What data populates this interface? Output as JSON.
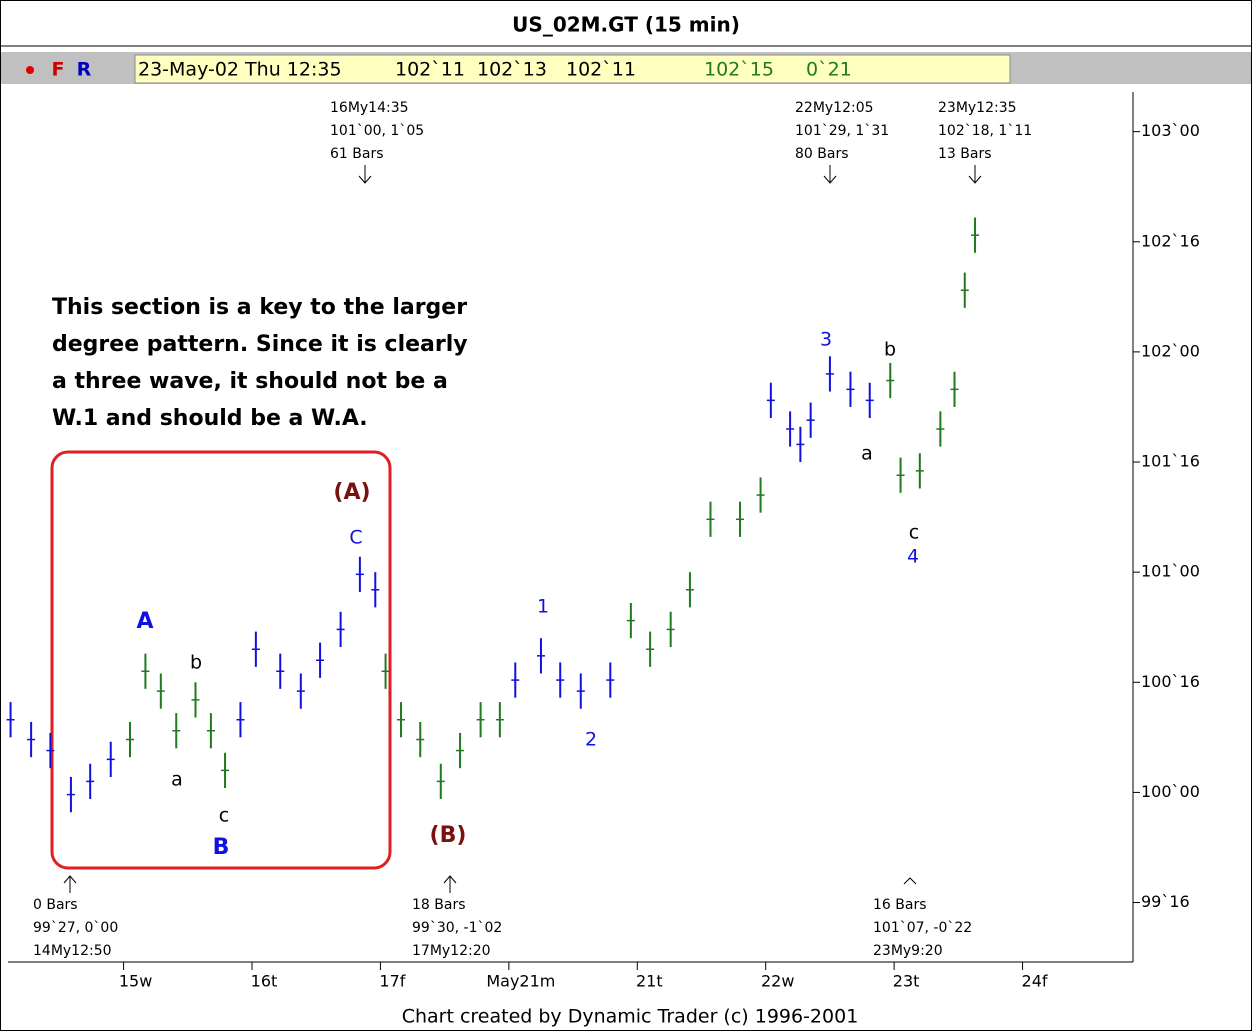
{
  "chart_data": {
    "type": "hlbar",
    "title": "US_02M.GT (15 min)",
    "toolbar": {
      "buttons": [
        "F",
        "R"
      ],
      "quote": [
        "23-May-02 Thu 12:35",
        "102`11",
        "102`13",
        "102`11",
        "102`15",
        "0`21"
      ]
    },
    "footer": "Chart created by Dynamic Trader (c) 1996-2001",
    "xlim": [
      -0.9,
      7.86
    ],
    "ylim": [
      99.23,
      103.18
    ],
    "xticks": [
      {
        "value": 0,
        "label": "15w"
      },
      {
        "value": 1,
        "label": "16t"
      },
      {
        "value": 2,
        "label": "17f"
      },
      {
        "value": 3,
        "label": "May21m"
      },
      {
        "value": 4,
        "label": "21t"
      },
      {
        "value": 5,
        "label": "22w"
      },
      {
        "value": 6,
        "label": "23t"
      },
      {
        "value": 7,
        "label": "24f"
      }
    ],
    "yticks": [
      {
        "value": 103,
        "label": "103`00"
      },
      {
        "value": 102.5,
        "label": "102`16"
      },
      {
        "value": 102,
        "label": "102`00"
      },
      {
        "value": 101.5,
        "label": "101`16"
      },
      {
        "value": 101,
        "label": "101`00"
      },
      {
        "value": 100.5,
        "label": "100`16"
      },
      {
        "value": 100,
        "label": "100`00"
      },
      {
        "value": 99.5,
        "label": "99`16"
      }
    ],
    "colors": {
      "up": "#1f7a1f",
      "down": "#1010e0"
    },
    "bars": {
      "x": [
        -0.88,
        -0.72,
        -0.57,
        -0.41,
        -0.26,
        -0.1,
        0.05,
        0.17,
        0.29,
        0.41,
        0.56,
        0.68,
        0.79,
        0.91,
        1.03,
        1.22,
        1.38,
        1.53,
        1.69,
        1.84,
        1.96,
        2.04,
        2.16,
        2.31,
        2.47,
        2.62,
        2.78,
        2.93,
        3.05,
        3.25,
        3.4,
        3.56,
        3.79,
        3.95,
        4.1,
        4.26,
        4.41,
        4.57,
        4.8,
        4.96,
        5.04,
        5.19,
        5.27,
        5.35,
        5.5,
        5.66,
        5.81,
        5.97,
        6.05,
        6.2,
        6.36,
        6.47,
        6.55,
        6.63
      ],
      "high": [
        100.41,
        100.32,
        100.27,
        100.07,
        100.13,
        100.23,
        100.32,
        100.63,
        100.54,
        100.36,
        100.5,
        100.36,
        100.18,
        100.41,
        100.73,
        100.63,
        100.54,
        100.68,
        100.82,
        101.07,
        101.0,
        100.63,
        100.41,
        100.32,
        100.13,
        100.27,
        100.41,
        100.41,
        100.59,
        100.7,
        100.59,
        100.54,
        100.59,
        100.86,
        100.73,
        100.82,
        101.0,
        101.32,
        101.32,
        101.43,
        101.86,
        101.73,
        101.66,
        101.77,
        101.98,
        101.91,
        101.86,
        101.95,
        101.52,
        101.54,
        101.73,
        101.91,
        102.36,
        102.61
      ],
      "low": [
        100.25,
        100.16,
        100.11,
        99.91,
        99.97,
        100.07,
        100.16,
        100.47,
        100.38,
        100.2,
        100.34,
        100.2,
        100.02,
        100.25,
        100.57,
        100.47,
        100.38,
        100.52,
        100.66,
        100.91,
        100.84,
        100.47,
        100.25,
        100.16,
        99.97,
        100.11,
        100.25,
        100.25,
        100.43,
        100.54,
        100.43,
        100.38,
        100.43,
        100.7,
        100.57,
        100.66,
        100.84,
        101.16,
        101.16,
        101.27,
        101.7,
        101.57,
        101.5,
        101.61,
        101.82,
        101.75,
        101.7,
        101.79,
        101.36,
        101.38,
        101.57,
        101.75,
        102.2,
        102.45
      ],
      "dir": [
        "down",
        "down",
        "down",
        "down",
        "down",
        "down",
        "up",
        "up",
        "up",
        "up",
        "up",
        "up",
        "up",
        "down",
        "down",
        "down",
        "down",
        "down",
        "down",
        "down",
        "down",
        "up",
        "up",
        "up",
        "up",
        "up",
        "up",
        "up",
        "down",
        "down",
        "down",
        "down",
        "down",
        "up",
        "up",
        "up",
        "up",
        "up",
        "up",
        "up",
        "down",
        "down",
        "down",
        "down",
        "down",
        "down",
        "down",
        "up",
        "up",
        "up",
        "up",
        "up",
        "up",
        "up"
      ]
    },
    "annotations": [
      {
        "lines": [
          "16My14:35",
          "101`00, 1`05",
          "61 Bars"
        ]
      },
      {
        "lines": [
          "22My12:05",
          "101`29, 1`31",
          "80 Bars"
        ]
      },
      {
        "lines": [
          "23My12:35",
          "102`18, 1`11",
          "13 Bars"
        ]
      },
      {
        "lines": [
          "0 Bars",
          "99`27, 0`00",
          "14My12:50"
        ]
      },
      {
        "lines": [
          "18 Bars",
          "99`30, -1`02",
          "17My12:20"
        ]
      },
      {
        "lines": [
          "16 Bars",
          "101`07, -0`22",
          "23My9:20"
        ]
      }
    ],
    "note": [
      "This section is a key to the larger",
      "degree pattern. Since it is clearly",
      "a three wave, it should not be a",
      "W.1 and should be a W.A."
    ],
    "wave_labels": [
      "(A)",
      "C",
      "A",
      "b",
      "a",
      "c",
      "B",
      "(B)",
      "1",
      "2",
      "3",
      "b",
      "a",
      "c",
      "4"
    ]
  }
}
